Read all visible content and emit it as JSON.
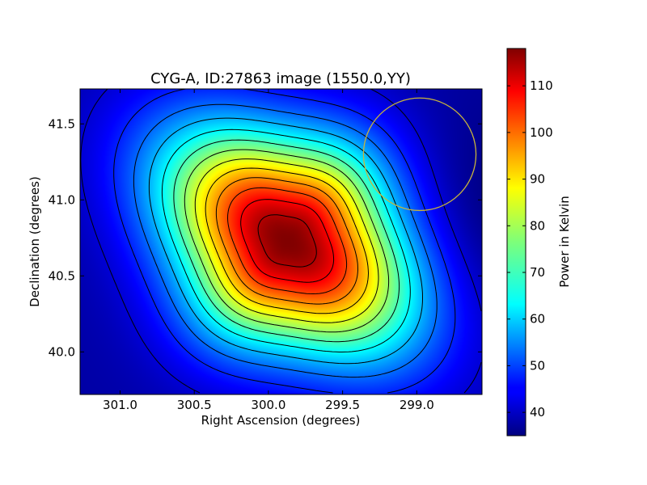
{
  "chart_data": {
    "type": "heatmap",
    "title": "CYG-A, ID:27863 image (1550.0,YY)",
    "xlabel": "Right Ascension (degrees)",
    "ylabel": "Declination (degrees)",
    "xlim": [
      301.27,
      298.56
    ],
    "ylim": [
      39.72,
      41.73
    ],
    "x_axis_inverted": true,
    "x_ticks": [
      301.0,
      300.5,
      300.0,
      299.5,
      299.0
    ],
    "x_tick_labels": [
      "301.0",
      "300.5",
      "300.0",
      "299.5",
      "299.0"
    ],
    "y_ticks": [
      40.0,
      40.5,
      41.0,
      41.5
    ],
    "y_tick_labels": [
      "40.0",
      "40.5",
      "41.0",
      "41.5"
    ],
    "colormap": "jet",
    "colorbar": {
      "label": "Power in Kelvin",
      "range": [
        35,
        118
      ],
      "ticks": [
        40,
        50,
        60,
        70,
        80,
        90,
        100,
        110
      ],
      "tick_labels": [
        "40",
        "50",
        "60",
        "70",
        "80",
        "90",
        "100",
        "110"
      ]
    },
    "source": {
      "ra": 299.87,
      "dec": 40.73,
      "peak": 118
    },
    "background_level": 38,
    "contour_levels": [
      42,
      48,
      54,
      60,
      66,
      72,
      78,
      84,
      90,
      96,
      102,
      108,
      114
    ],
    "beam_circle": {
      "ra": 298.98,
      "dec": 41.3,
      "radius_deg": 0.37,
      "color": "#c8b43c"
    },
    "grid": false
  }
}
